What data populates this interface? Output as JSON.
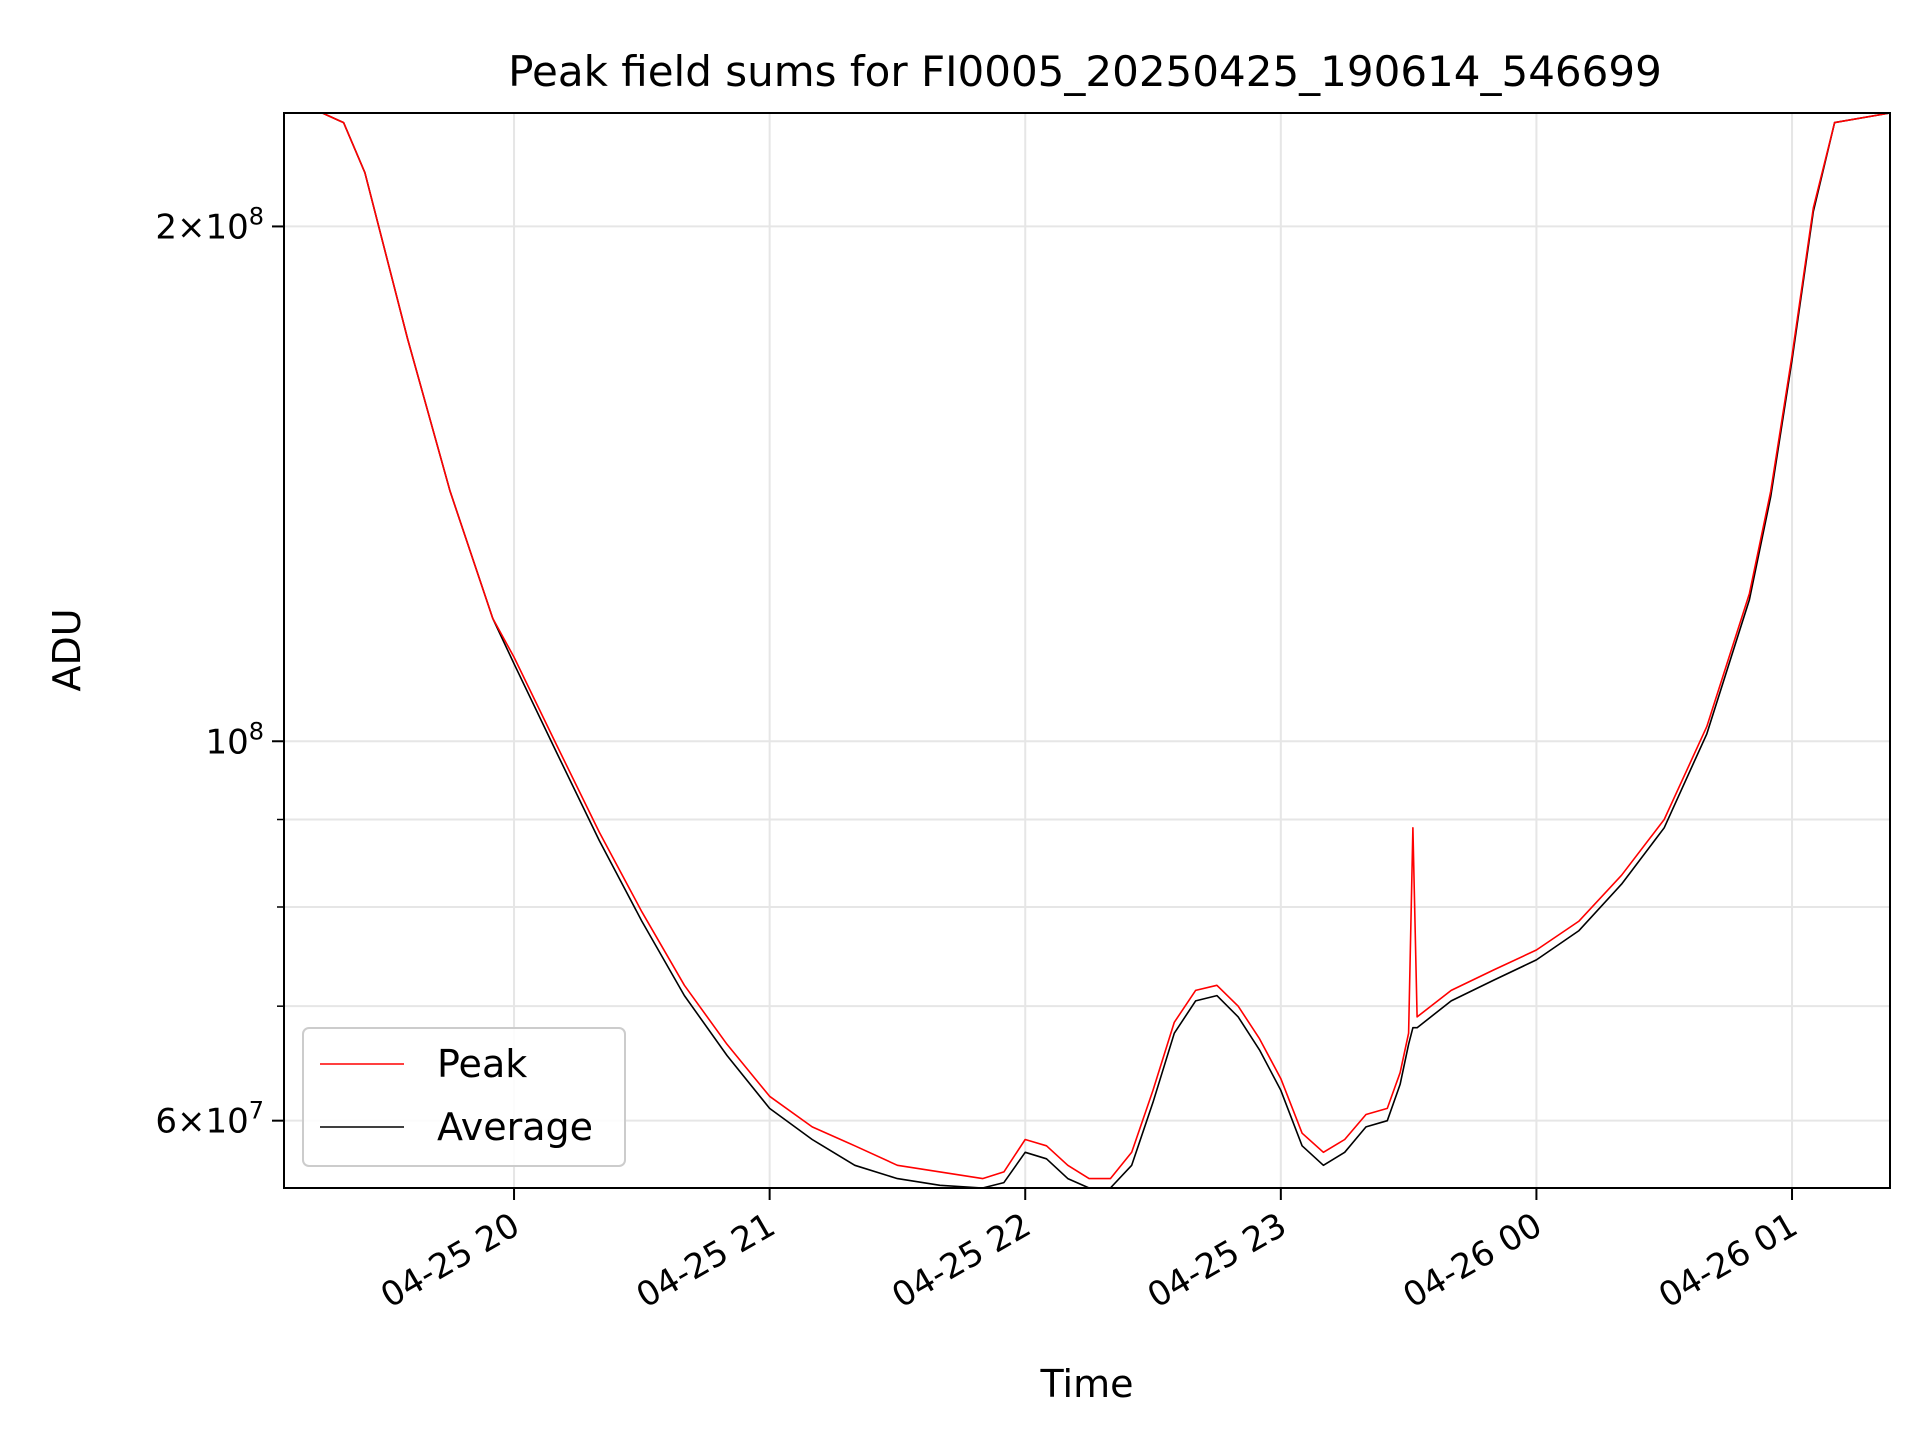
{
  "chart_data": {
    "type": "line",
    "title": "Peak field sums for FI0005_20250425_190614_546699",
    "xlabel": "Time",
    "ylabel": "ADU",
    "yscale": "log",
    "grid": true,
    "legend_position": "lower-left",
    "xlim": [
      "2025-04-25 19:06",
      "2025-04-26 01:23"
    ],
    "ylim": [
      54800000.0,
      233000000.0
    ],
    "x_ticks": [
      {
        "value": "2025-04-25 20:00",
        "label": "04-25 20"
      },
      {
        "value": "2025-04-25 21:00",
        "label": "04-25 21"
      },
      {
        "value": "2025-04-25 22:00",
        "label": "04-25 22"
      },
      {
        "value": "2025-04-25 23:00",
        "label": "04-25 23"
      },
      {
        "value": "2025-04-26 00:00",
        "label": "04-26 00"
      },
      {
        "value": "2025-04-26 01:00",
        "label": "04-26 01"
      }
    ],
    "y_ticks": [
      {
        "value": 200000000,
        "mantissa": "2",
        "exponent": "8",
        "label": "2×10^8"
      },
      {
        "value": 100000000,
        "mantissa": "",
        "exponent": "8",
        "label": "10^8"
      },
      {
        "value": 60000000,
        "mantissa": "6",
        "exponent": "7",
        "label": "6×10^7"
      }
    ],
    "y_minor_ticks": [
      70000000,
      80000000,
      90000000
    ],
    "series": [
      {
        "name": "Peak",
        "color": "#ff0000",
        "points": [
          [
            "2025-04-25 19:06",
            233000000.0
          ],
          [
            "2025-04-25 19:15",
            233000000.0
          ],
          [
            "2025-04-25 19:20",
            230000000.0
          ],
          [
            "2025-04-25 19:25",
            215000000.0
          ],
          [
            "2025-04-25 19:35",
            172000000.0
          ],
          [
            "2025-04-25 19:45",
            140000000.0
          ],
          [
            "2025-04-25 19:55",
            118000000.0
          ],
          [
            "2025-04-25 20:00",
            112000000.0
          ],
          [
            "2025-04-25 20:10",
            99500000.0
          ],
          [
            "2025-04-25 20:20",
            88500000.0
          ],
          [
            "2025-04-25 20:30",
            79500000.0
          ],
          [
            "2025-04-25 20:40",
            72000000.0
          ],
          [
            "2025-04-25 20:50",
            66500000.0
          ],
          [
            "2025-04-25 21:00",
            62000000.0
          ],
          [
            "2025-04-25 21:10",
            59500000.0
          ],
          [
            "2025-04-25 21:20",
            58000000.0
          ],
          [
            "2025-04-25 21:30",
            56500000.0
          ],
          [
            "2025-04-25 21:40",
            56000000.0
          ],
          [
            "2025-04-25 21:50",
            55500000.0
          ],
          [
            "2025-04-25 21:55",
            56000000.0
          ],
          [
            "2025-04-25 22:00",
            58500000.0
          ],
          [
            "2025-04-25 22:05",
            58000000.0
          ],
          [
            "2025-04-25 22:10",
            56500000.0
          ],
          [
            "2025-04-25 22:15",
            55500000.0
          ],
          [
            "2025-04-25 22:20",
            55500000.0
          ],
          [
            "2025-04-25 22:25",
            57500000.0
          ],
          [
            "2025-04-25 22:30",
            62500000.0
          ],
          [
            "2025-04-25 22:35",
            68500000.0
          ],
          [
            "2025-04-25 22:40",
            71500000.0
          ],
          [
            "2025-04-25 22:45",
            72000000.0
          ],
          [
            "2025-04-25 22:50",
            70000000.0
          ],
          [
            "2025-04-25 22:55",
            67000000.0
          ],
          [
            "2025-04-25 23:00",
            63500000.0
          ],
          [
            "2025-04-25 23:05",
            59000000.0
          ],
          [
            "2025-04-25 23:10",
            57500000.0
          ],
          [
            "2025-04-25 23:15",
            58500000.0
          ],
          [
            "2025-04-25 23:20",
            60500000.0
          ],
          [
            "2025-04-25 23:25",
            61000000.0
          ],
          [
            "2025-04-25 23:28",
            64000000.0
          ],
          [
            "2025-04-25 23:30",
            67500000.0
          ],
          [
            "2025-04-25 23:31",
            89000000.0
          ],
          [
            "2025-04-25 23:32",
            69000000.0
          ],
          [
            "2025-04-25 23:40",
            71500000.0
          ],
          [
            "2025-04-25 23:50",
            73500000.0
          ],
          [
            "2025-04-26 00:00",
            75500000.0
          ],
          [
            "2025-04-26 00:10",
            78500000.0
          ],
          [
            "2025-04-26 00:20",
            83500000.0
          ],
          [
            "2025-04-26 00:30",
            90000000.0
          ],
          [
            "2025-04-26 00:40",
            102000000.0
          ],
          [
            "2025-04-26 00:50",
            122000000.0
          ],
          [
            "2025-04-26 00:55",
            140000000.0
          ],
          [
            "2025-04-26 01:00",
            168000000.0
          ],
          [
            "2025-04-26 01:05",
            205000000.0
          ],
          [
            "2025-04-26 01:10",
            230000000.0
          ],
          [
            "2025-04-26 01:23",
            233000000.0
          ]
        ]
      },
      {
        "name": "Average",
        "color": "#000000",
        "points": [
          [
            "2025-04-25 19:06",
            233000000.0
          ],
          [
            "2025-04-25 19:15",
            233000000.0
          ],
          [
            "2025-04-25 19:20",
            230000000.0
          ],
          [
            "2025-04-25 19:25",
            215000000.0
          ],
          [
            "2025-04-25 19:35",
            172000000.0
          ],
          [
            "2025-04-25 19:45",
            140000000.0
          ],
          [
            "2025-04-25 19:55",
            118000000.0
          ],
          [
            "2025-04-25 20:00",
            111000000.0
          ],
          [
            "2025-04-25 20:10",
            98500000.0
          ],
          [
            "2025-04-25 20:20",
            87500000.0
          ],
          [
            "2025-04-25 20:30",
            78500000.0
          ],
          [
            "2025-04-25 20:40",
            71000000.0
          ],
          [
            "2025-04-25 20:50",
            65500000.0
          ],
          [
            "2025-04-25 21:00",
            61000000.0
          ],
          [
            "2025-04-25 21:10",
            58500000.0
          ],
          [
            "2025-04-25 21:20",
            56500000.0
          ],
          [
            "2025-04-25 21:30",
            55500000.0
          ],
          [
            "2025-04-25 21:40",
            55000000.0
          ],
          [
            "2025-04-25 21:50",
            54800000.0
          ],
          [
            "2025-04-25 21:55",
            55200000.0
          ],
          [
            "2025-04-25 22:00",
            57500000.0
          ],
          [
            "2025-04-25 22:05",
            57000000.0
          ],
          [
            "2025-04-25 22:10",
            55500000.0
          ],
          [
            "2025-04-25 22:15",
            54800000.0
          ],
          [
            "2025-04-25 22:20",
            54800000.0
          ],
          [
            "2025-04-25 22:25",
            56500000.0
          ],
          [
            "2025-04-25 22:30",
            61500000.0
          ],
          [
            "2025-04-25 22:35",
            67500000.0
          ],
          [
            "2025-04-25 22:40",
            70500000.0
          ],
          [
            "2025-04-25 22:45",
            71000000.0
          ],
          [
            "2025-04-25 22:50",
            69000000.0
          ],
          [
            "2025-04-25 22:55",
            66000000.0
          ],
          [
            "2025-04-25 23:00",
            62500000.0
          ],
          [
            "2025-04-25 23:05",
            58000000.0
          ],
          [
            "2025-04-25 23:10",
            56500000.0
          ],
          [
            "2025-04-25 23:15",
            57500000.0
          ],
          [
            "2025-04-25 23:20",
            59500000.0
          ],
          [
            "2025-04-25 23:25",
            60000000.0
          ],
          [
            "2025-04-25 23:28",
            63000000.0
          ],
          [
            "2025-04-25 23:30",
            66500000.0
          ],
          [
            "2025-04-25 23:31",
            68000000.0
          ],
          [
            "2025-04-25 23:32",
            68000000.0
          ],
          [
            "2025-04-25 23:40",
            70500000.0
          ],
          [
            "2025-04-25 23:50",
            72500000.0
          ],
          [
            "2025-04-26 00:00",
            74500000.0
          ],
          [
            "2025-04-26 00:10",
            77500000.0
          ],
          [
            "2025-04-26 00:20",
            82500000.0
          ],
          [
            "2025-04-26 00:30",
            89000000.0
          ],
          [
            "2025-04-26 00:40",
            101000000.0
          ],
          [
            "2025-04-26 00:50",
            121000000.0
          ],
          [
            "2025-04-26 00:55",
            139000000.0
          ],
          [
            "2025-04-26 01:00",
            167000000.0
          ],
          [
            "2025-04-26 01:05",
            204000000.0
          ],
          [
            "2025-04-26 01:10",
            230000000.0
          ],
          [
            "2025-04-26 01:23",
            233000000.0
          ]
        ]
      }
    ]
  }
}
